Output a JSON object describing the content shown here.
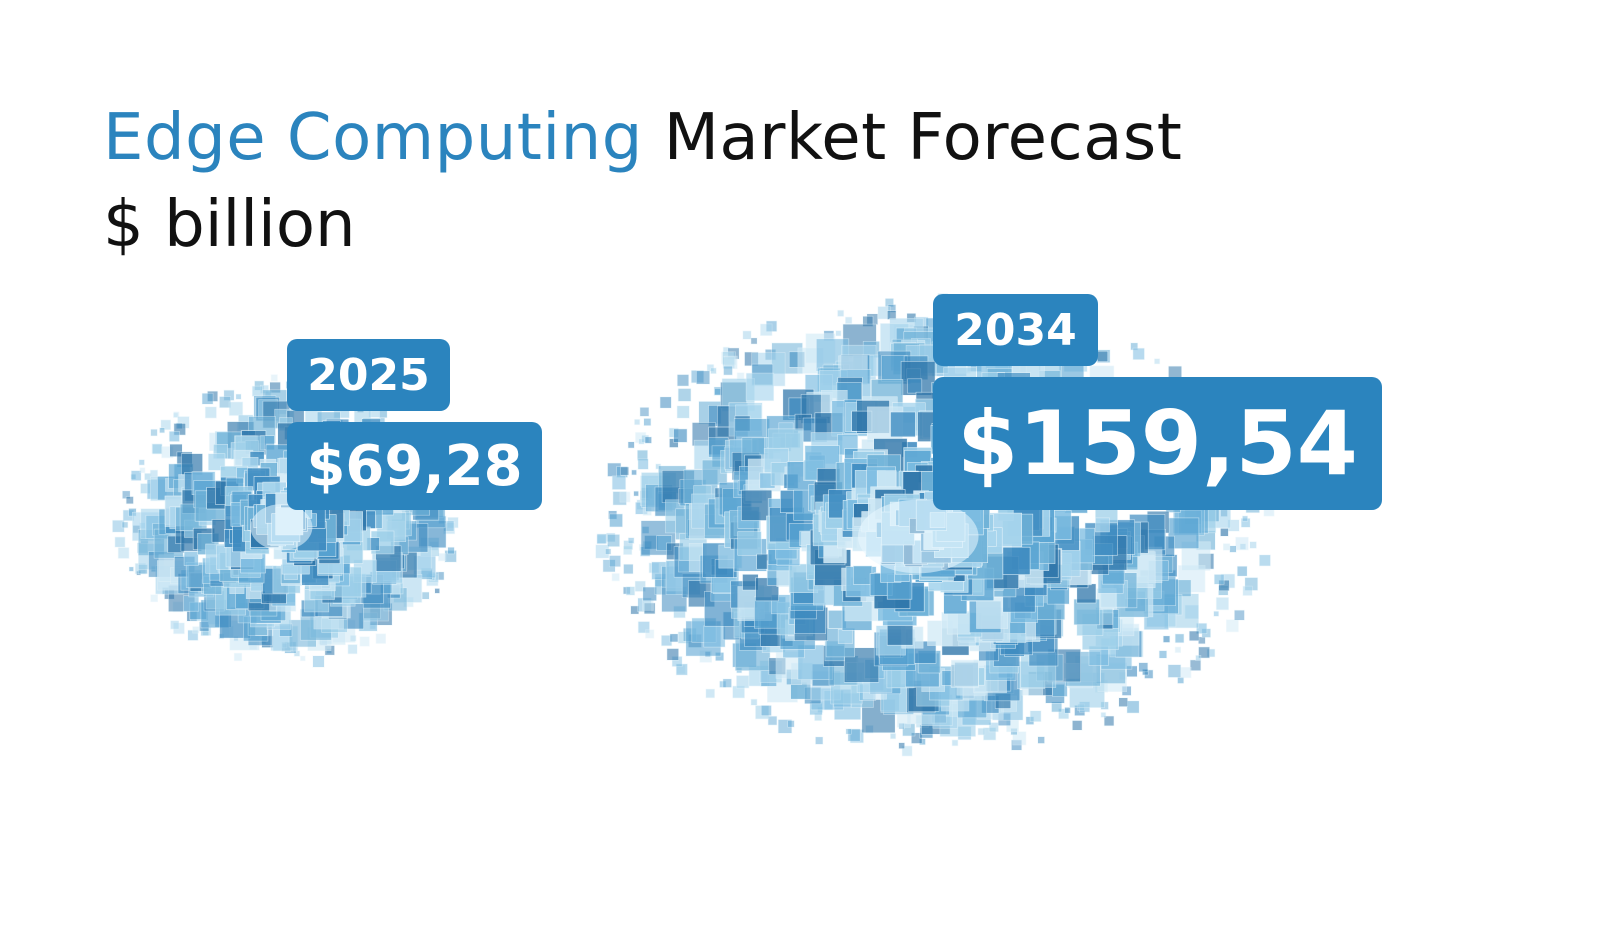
{
  "header": {
    "title_accent": "Edge Computing",
    "title_rest": "Market Forecast",
    "subtitle": "$ billion"
  },
  "colors": {
    "accent": "#2b84be",
    "cube_light": "#bfe3f3",
    "cube_mid": "#6fb2d8",
    "cube_dark": "#2a6f9f"
  },
  "chart_data": {
    "type": "bubble",
    "title": "Edge Computing Market Forecast",
    "unit": "$ billion",
    "categories": [
      "2025",
      "2034"
    ],
    "values": [
      69.28,
      159.54
    ],
    "value_labels": [
      "$69,28",
      "$159,54"
    ]
  }
}
